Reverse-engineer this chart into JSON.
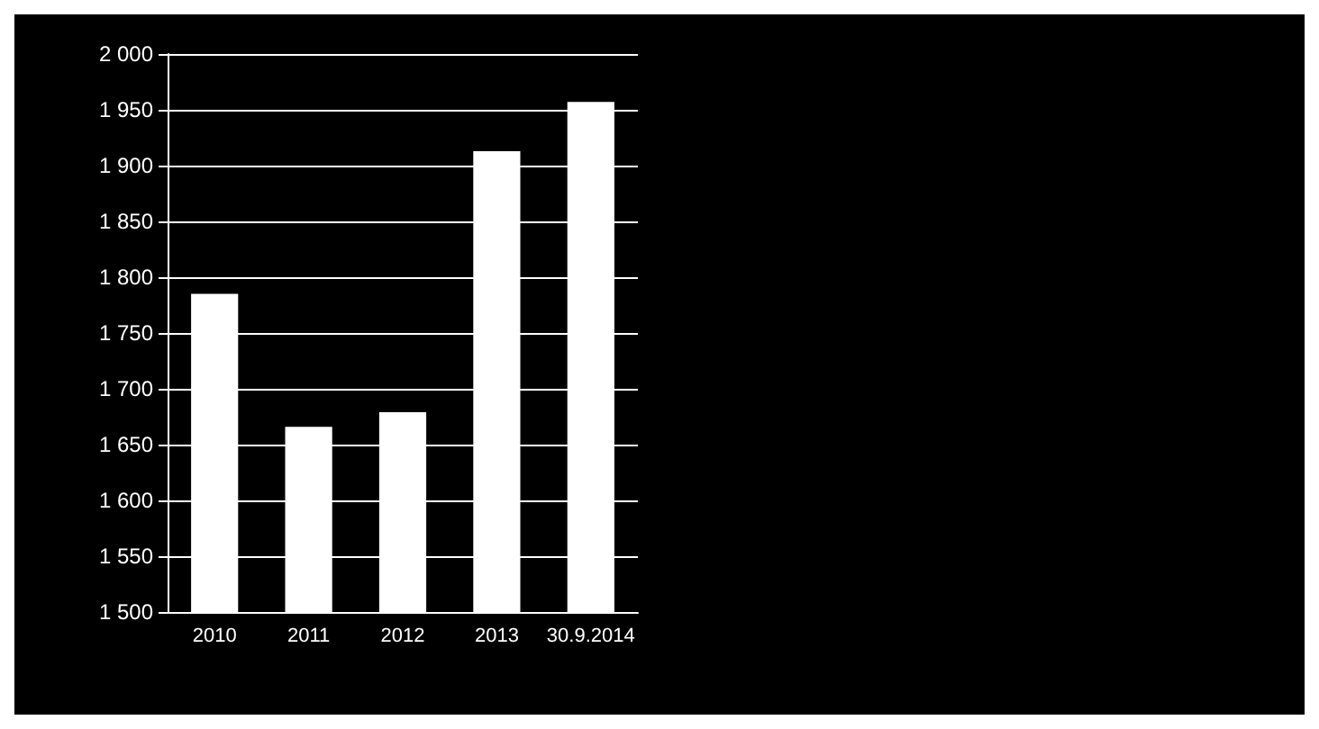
{
  "chart_data": {
    "type": "bar",
    "categories": [
      "2010",
      "2011",
      "2012",
      "2013",
      "30.9.2014"
    ],
    "values": [
      1785,
      1666,
      1679,
      1913,
      1957
    ],
    "color": "#ffffff",
    "ylim": [
      1500,
      2000
    ],
    "yticks": [
      {
        "value": 1500,
        "label": "1 500"
      },
      {
        "value": 1550,
        "label": "1 550"
      },
      {
        "value": 1600,
        "label": "1 600"
      },
      {
        "value": 1650,
        "label": "1 650"
      },
      {
        "value": 1700,
        "label": "1 700"
      },
      {
        "value": 1750,
        "label": "1 750"
      },
      {
        "value": 1800,
        "label": "1 800"
      },
      {
        "value": 1850,
        "label": "1 850"
      },
      {
        "value": 1900,
        "label": "1 900"
      },
      {
        "value": 1950,
        "label": "1 950"
      },
      {
        "value": 2000,
        "label": "2 000"
      }
    ],
    "grid": "y"
  }
}
